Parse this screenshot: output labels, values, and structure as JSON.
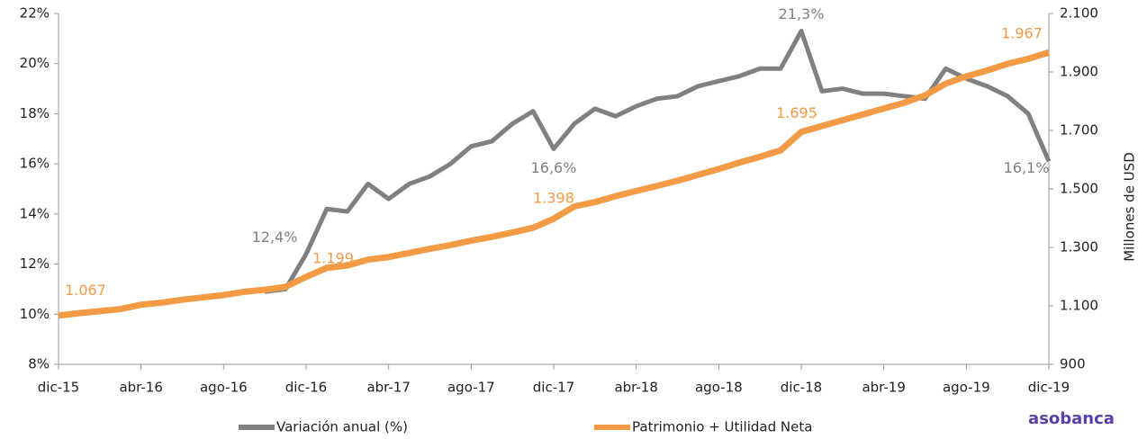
{
  "chart_data": {
    "type": "line",
    "y2label": "Millones de USD",
    "logo": "asobanca",
    "categories": [
      "dic-15",
      null,
      null,
      null,
      "abr-16",
      null,
      null,
      null,
      "ago-16",
      null,
      null,
      null,
      "dic-16",
      null,
      null,
      null,
      "abr-17",
      null,
      null,
      null,
      "ago-17",
      null,
      null,
      null,
      "dic-17",
      null,
      null,
      null,
      "abr-18",
      null,
      null,
      null,
      "ago-18",
      null,
      null,
      null,
      "dic-18",
      null,
      null,
      null,
      "abr-19",
      null,
      null,
      null,
      "ago-19",
      null,
      null,
      null,
      "dic-19"
    ],
    "ylim": [
      8,
      22
    ],
    "yticks": [
      {
        "value": 8,
        "label": "8%"
      },
      {
        "value": 10,
        "label": "10%"
      },
      {
        "value": 12,
        "label": "12%"
      },
      {
        "value": 14,
        "label": "14%"
      },
      {
        "value": 16,
        "label": "16%"
      },
      {
        "value": 18,
        "label": "18%"
      },
      {
        "value": 20,
        "label": "20%"
      },
      {
        "value": 22,
        "label": "22%"
      }
    ],
    "y2lim": [
      900,
      2100
    ],
    "y2ticks": [
      900,
      {
        "value": 1100,
        "label": "1.100"
      },
      {
        "value": 1300,
        "label": "1.300"
      },
      {
        "value": 1500,
        "label": "1.500"
      },
      {
        "value": 1700,
        "label": "1.700"
      },
      {
        "value": 1900,
        "label": "1.900"
      },
      {
        "value": 2100,
        "label": "2.100"
      }
    ],
    "series": [
      {
        "name": "Variación anual (%)",
        "color": "#808080",
        "values": [
          null,
          null,
          null,
          null,
          null,
          null,
          null,
          null,
          null,
          null,
          10.9,
          11.0,
          12.4,
          14.2,
          14.1,
          15.2,
          14.6,
          15.2,
          15.5,
          16.0,
          16.7,
          16.9,
          17.6,
          18.1,
          16.6,
          17.6,
          18.2,
          17.9,
          18.3,
          18.6,
          18.7,
          19.1,
          19.3,
          19.5,
          19.8,
          19.8,
          21.3,
          18.9,
          19.0,
          18.8,
          18.8,
          18.7,
          18.6,
          19.8,
          19.4,
          19.1,
          18.7,
          18.0,
          16.1
        ],
        "value_labels": [
          null,
          null,
          null,
          null,
          null,
          null,
          null,
          null,
          null,
          null,
          null,
          null,
          "12,4%",
          null,
          null,
          null,
          null,
          null,
          null,
          null,
          null,
          null,
          null,
          null,
          "16,6%",
          null,
          null,
          null,
          null,
          null,
          null,
          null,
          null,
          null,
          null,
          null,
          "21,3%",
          null,
          null,
          null,
          null,
          null,
          null,
          null,
          null,
          null,
          null,
          null,
          "16,1%"
        ]
      },
      {
        "name": "Patrimonio + Utilidad Neta",
        "color": "#f39a45",
        "axis": "y2",
        "values": [
          1067,
          1075,
          1082,
          1089,
          1104,
          1111,
          1121,
          1129,
          1137,
          1148,
          1155,
          1165,
          1199,
          1230,
          1238,
          1258,
          1267,
          1281,
          1295,
          1308,
          1323,
          1336,
          1351,
          1367,
          1398,
          1440,
          1455,
          1475,
          1493,
          1510,
          1528,
          1548,
          1568,
          1590,
          1610,
          1632,
          1695,
          1715,
          1735,
          1755,
          1775,
          1795,
          1820,
          1860,
          1885,
          1905,
          1928,
          1945,
          1967
        ],
        "value_labels": [
          "1.067",
          null,
          null,
          null,
          null,
          null,
          null,
          null,
          null,
          null,
          null,
          null,
          "1.199",
          null,
          null,
          null,
          null,
          null,
          null,
          null,
          null,
          null,
          null,
          null,
          "1.398",
          null,
          null,
          null,
          null,
          null,
          null,
          null,
          null,
          null,
          null,
          null,
          "1.695",
          null,
          null,
          null,
          null,
          null,
          null,
          null,
          null,
          null,
          null,
          null,
          "1.967"
        ]
      }
    ]
  }
}
